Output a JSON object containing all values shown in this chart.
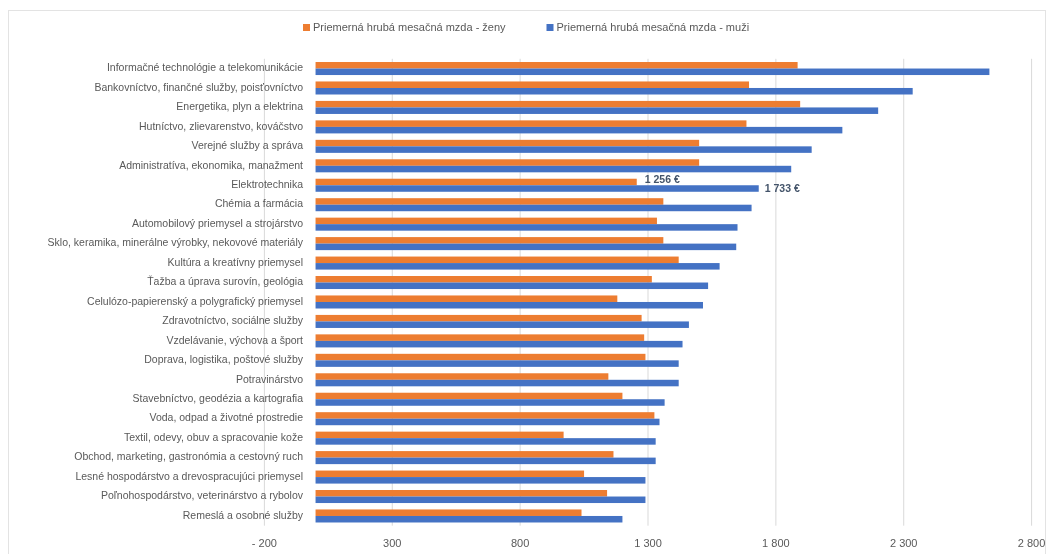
{
  "chart_data": {
    "type": "bar",
    "orientation": "horizontal",
    "legend": "top",
    "grid": "x",
    "categories": [
      "Informačné technológie a telekomunikácie",
      "Bankovníctvo, finančné služby, poisťovníctvo",
      "Energetika, plyn a elektrina",
      "Hutníctvo, zlievarenstvo, kováčstvo",
      "Verejné služby a správa",
      "Administratíva, ekonomika, manažment",
      "Elektrotechnika",
      "Chémia a farmácia",
      "Automobilový priemysel a strojárstvo",
      "Sklo, keramika, minerálne výrobky, nekovové materiály",
      "Kultúra a kreatívny priemysel",
      "Ťažba a úprava surovín, geológia",
      "Celulózo-papierenský a polygrafický priemysel",
      "Zdravotníctvo, sociálne služby",
      "Vzdelávanie, výchova a šport",
      "Doprava, logistika, poštové služby",
      "Potravinárstvo",
      "Stavebníctvo, geodézia a kartografia",
      "Voda, odpad a životné prostredie",
      "Textil, odevy, obuv a spracovanie kože",
      "Obchod, marketing, gastronómia a cestovný ruch",
      "Lesné hospodárstvo a drevospracujúci priemysel",
      "Poľnohospodárstvo, veterinárstvo a rybolov",
      "Remeslá a osobné služby"
    ],
    "series": [
      {
        "name": "Priemerná hrubá mesačná mzda - ženy",
        "color": "#ed7d31",
        "values": [
          1885,
          1695,
          1895,
          1685,
          1500,
          1500,
          1256,
          1360,
          1335,
          1360,
          1420,
          1315,
          1180,
          1275,
          1285,
          1290,
          1145,
          1200,
          1325,
          970,
          1165,
          1050,
          1140,
          1040
        ],
        "value_labels": [
          null,
          null,
          null,
          null,
          null,
          null,
          "1 256 €",
          null,
          null,
          null,
          null,
          null,
          null,
          null,
          null,
          null,
          null,
          null,
          null,
          null,
          null,
          null,
          null,
          null
        ]
      },
      {
        "name": "Priemerná hrubá mesačná mzda - muži",
        "color": "#4472c4",
        "values": [
          2635,
          2335,
          2200,
          2060,
          1940,
          1860,
          1733,
          1705,
          1650,
          1645,
          1580,
          1535,
          1515,
          1460,
          1435,
          1420,
          1420,
          1365,
          1345,
          1330,
          1330,
          1290,
          1290,
          1200
        ],
        "value_labels": [
          null,
          null,
          null,
          null,
          null,
          null,
          "1 733 €",
          null,
          null,
          null,
          null,
          null,
          null,
          null,
          null,
          null,
          null,
          null,
          null,
          null,
          null,
          null,
          null,
          null
        ]
      }
    ],
    "xlim": [
      -200,
      2800
    ],
    "xticks": [
      {
        "value": -200,
        "label": "- 200"
      },
      300,
      800,
      {
        "value": 1300,
        "label": "1 300"
      },
      {
        "value": 1800,
        "label": "1 800"
      },
      {
        "value": 2300,
        "label": "2 300"
      },
      {
        "value": 2800,
        "label": "2 800"
      }
    ]
  }
}
